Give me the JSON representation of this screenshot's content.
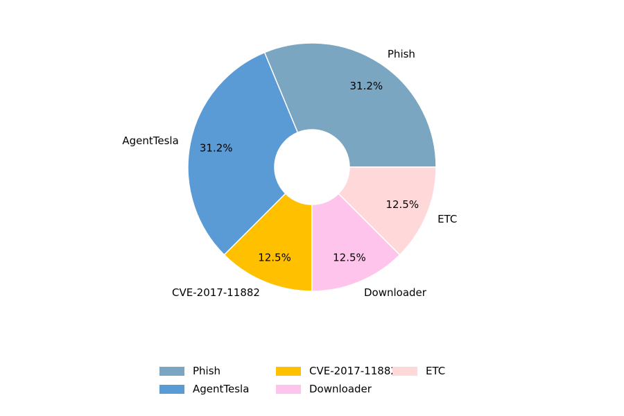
{
  "chart_data": {
    "type": "pie",
    "donut": true,
    "title": "",
    "start_angle_deg": 0,
    "direction": "counterclockwise",
    "legend_placement": "bottom-center",
    "slices": [
      {
        "label": "Phish",
        "value": 31.25,
        "pct_label": "31.2%",
        "color": "#7AA6C2"
      },
      {
        "label": "AgentTesla",
        "value": 31.25,
        "pct_label": "31.2%",
        "color": "#5B9BD5"
      },
      {
        "label": "CVE-2017-11882",
        "value": 12.5,
        "pct_label": "12.5%",
        "color": "#FFC000"
      },
      {
        "label": "Downloader",
        "value": 12.5,
        "pct_label": "12.5%",
        "color": "#FFC4EC"
      },
      {
        "label": "ETC",
        "value": 12.5,
        "pct_label": "12.5%",
        "color": "#FFD9D9"
      }
    ]
  }
}
